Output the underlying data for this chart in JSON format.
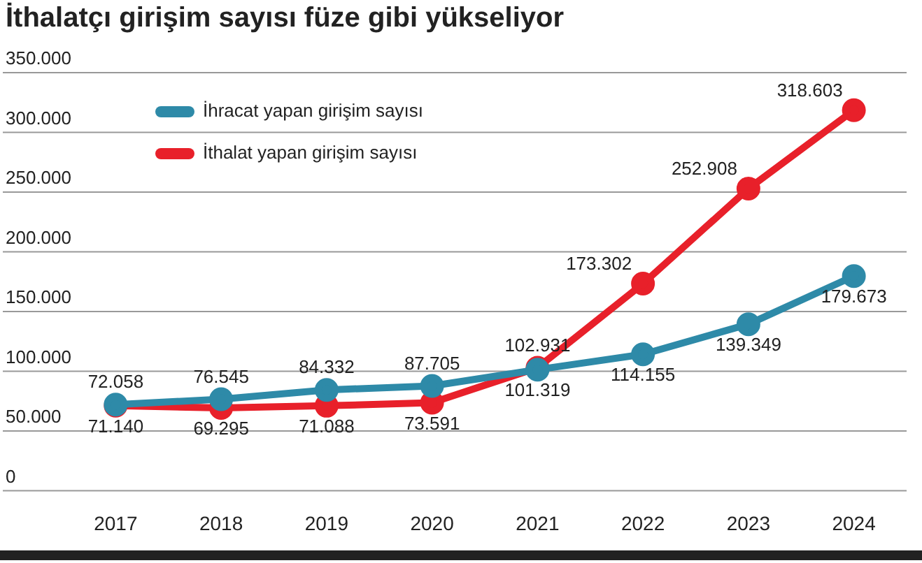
{
  "chart_data": {
    "type": "line",
    "title": "İthalatçı girişim sayısı füze gibi yükseliyor",
    "categories": [
      "2017",
      "2018",
      "2019",
      "2020",
      "2021",
      "2022",
      "2023",
      "2024"
    ],
    "series": [
      {
        "name": "İhracat yapan girişim sayısı",
        "color": "#2e8aa8",
        "values": [
          72058,
          76545,
          84332,
          87705,
          101319,
          114155,
          139349,
          179673
        ],
        "value_labels": [
          "72.058",
          "76.545",
          "84.332",
          "87.705",
          "101.319",
          "114.155",
          "139.349",
          "179.673"
        ]
      },
      {
        "name": "İthalat yapan girişim sayısı",
        "color": "#e8202a",
        "values": [
          71140,
          69295,
          71088,
          73591,
          102931,
          173302,
          252908,
          318603
        ],
        "value_labels": [
          "71.140",
          "69.295",
          "71.088",
          "73.591",
          "102.931",
          "173.302",
          "252.908",
          "318.603"
        ]
      }
    ],
    "ylim": [
      0,
      350000
    ],
    "yticks": [
      0,
      {
        "value": 50000,
        "label": "50.000"
      },
      {
        "value": 100000,
        "label": "100.000"
      },
      {
        "value": 150000,
        "label": "150.000"
      },
      {
        "value": 200000,
        "label": "200.000"
      },
      {
        "value": 250000,
        "label": "250.000"
      },
      {
        "value": 300000,
        "label": "300.000"
      },
      {
        "value": 350000,
        "label": "350.000"
      }
    ],
    "grid": "y",
    "legend": "top left",
    "marker": "circle",
    "line_style": "solid"
  }
}
